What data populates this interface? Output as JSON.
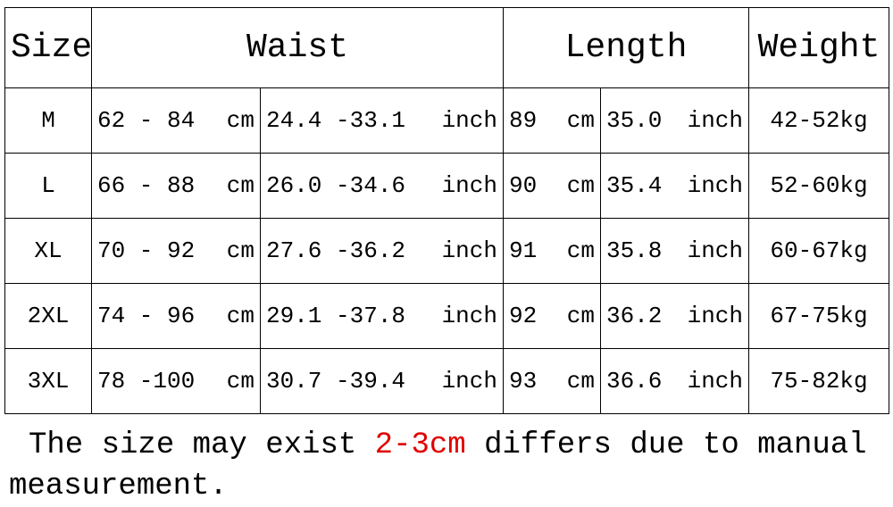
{
  "table": {
    "header": [
      "Size",
      "Waist",
      "Length",
      "Weight"
    ],
    "rows": [
      {
        "size": "M",
        "waist_cm": [
          "62 - 84",
          "cm"
        ],
        "waist_inch": [
          "24.4 -33.1",
          "inch"
        ],
        "length_cm": [
          "89",
          "cm"
        ],
        "length_inch": [
          "35.0",
          "inch"
        ],
        "weight": "42-52kg"
      },
      {
        "size": "L",
        "waist_cm": [
          "66 - 88",
          "cm"
        ],
        "waist_inch": [
          "26.0 -34.6",
          "inch"
        ],
        "length_cm": [
          "90",
          "cm"
        ],
        "length_inch": [
          "35.4",
          "inch"
        ],
        "weight": "52-60kg"
      },
      {
        "size": "XL",
        "waist_cm": [
          "70 - 92",
          "cm"
        ],
        "waist_inch": [
          "27.6 -36.2",
          "inch"
        ],
        "length_cm": [
          "91",
          "cm"
        ],
        "length_inch": [
          "35.8",
          "inch"
        ],
        "weight": "60-67kg"
      },
      {
        "size": "2XL",
        "waist_cm": [
          "74 - 96",
          "cm"
        ],
        "waist_inch": [
          "29.1 -37.8",
          "inch"
        ],
        "length_cm": [
          "92",
          "cm"
        ],
        "length_inch": [
          "36.2",
          "inch"
        ],
        "weight": "67-75kg"
      },
      {
        "size": "3XL",
        "waist_cm": [
          "78 -100",
          "cm"
        ],
        "waist_inch": [
          "30.7 -39.4",
          "inch"
        ],
        "length_cm": [
          "93",
          "cm"
        ],
        "length_inch": [
          "36.6",
          "inch"
        ],
        "weight": "75-82kg"
      }
    ]
  },
  "note": {
    "before": "The size may exist",
    "highlight": "2-3cm",
    "after": "differs due to manual measurement."
  }
}
